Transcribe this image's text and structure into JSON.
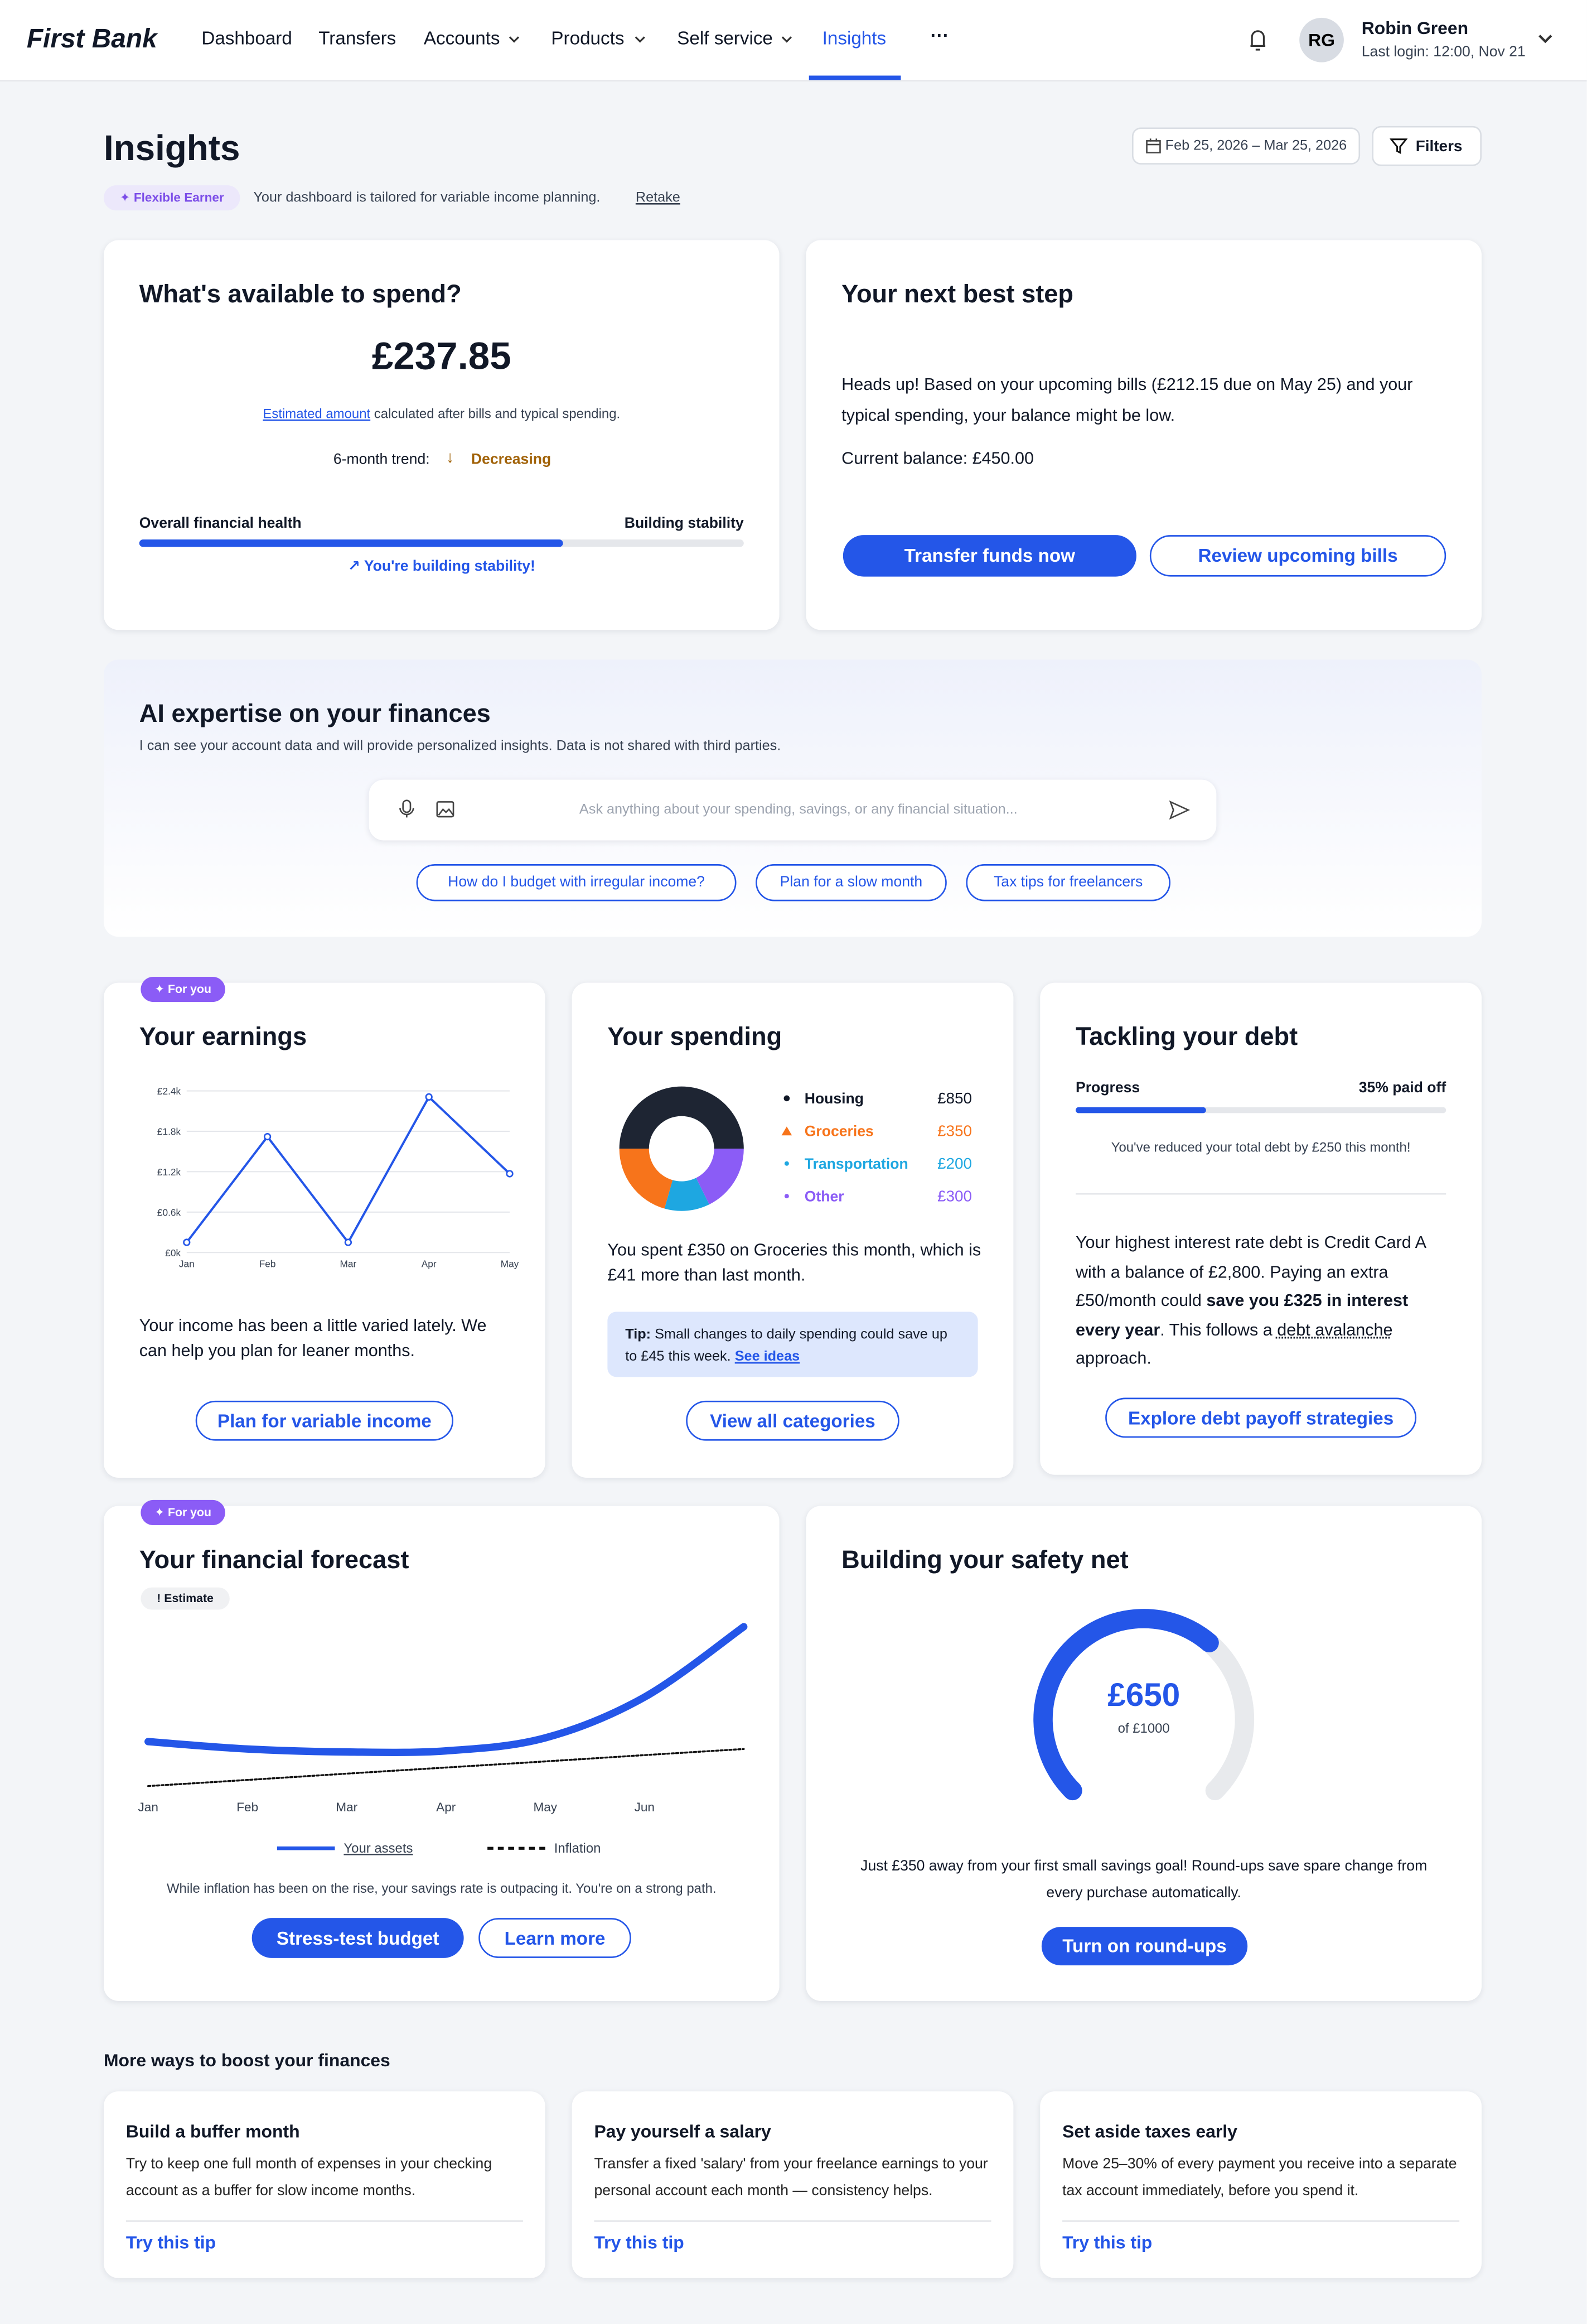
{
  "nav": {
    "logo": "First Bank",
    "items": [
      "Dashboard",
      "Transfers",
      "Accounts",
      "Products",
      "Self service",
      "Insights"
    ],
    "more": "···",
    "user": {
      "initials": "RG",
      "name": "Robin Green",
      "last_login": "Last login: 12:00, Nov 21"
    }
  },
  "header": {
    "title": "Insights",
    "date_range": "Feb 25, 2026 – Mar 25, 2026",
    "filters": "Filters",
    "badge": "✦ Flexible Earner",
    "tagline": "Your dashboard is tailored for variable income planning.",
    "retake": "Retake"
  },
  "available": {
    "title": "What's available to spend?",
    "amount": "£237.85",
    "estimated_link": "Estimated amount",
    "estimated_text": " calculated after bills and typical spending.",
    "trend_label": "6-month trend:",
    "trend_value": "Decreasing",
    "health_label": "Overall financial health",
    "health_status": "Building stability",
    "health_progress": 70,
    "health_max": 100,
    "health_note": "You're building stability!"
  },
  "next_step": {
    "title": "Your next best step",
    "message": "Heads up! Based on your upcoming bills (£212.15 due on May 25) and your typical spending, your balance might be low.",
    "balance": "Current balance: £450.00",
    "primary": "Transfer funds now",
    "secondary": "Review upcoming bills"
  },
  "ai": {
    "title": "AI expertise on your finances",
    "subtitle": "I can see your account data and will provide personalized insights. Data is not shared with third parties.",
    "placeholder": "Ask anything about your spending, savings, or any financial situation...",
    "suggestions": [
      "How do I budget with irregular income?",
      "Plan for a slow month",
      "Tax tips for freelancers"
    ]
  },
  "earnings": {
    "badge": "✦ For you",
    "title": "Your earnings",
    "chart_data": {
      "type": "line",
      "categories": [
        "Jan",
        "Feb",
        "Mar",
        "Apr",
        "May"
      ],
      "values": [
        150,
        1720,
        150,
        2310,
        1170
      ],
      "color": "#2456e8",
      "ylim": [
        0,
        2400
      ],
      "yticks": [
        {
          "value": 0,
          "label": "£0k"
        },
        {
          "value": 600,
          "label": "£0.6k"
        },
        {
          "value": 1200,
          "label": "£1.2k"
        },
        {
          "value": 1800,
          "label": "£1.8k"
        },
        {
          "value": 2400,
          "label": "£2.4k"
        }
      ],
      "grid": true
    },
    "text": "Your income has been a little varied lately. We can help you plan for leaner months.",
    "button": "Plan for variable income"
  },
  "spending": {
    "title": "Your spending",
    "chart_data": {
      "type": "donut",
      "categories": [
        "Housing",
        "Groceries",
        "Transportation",
        "Other"
      ],
      "values": [
        850,
        350,
        200,
        300
      ],
      "value_labels": [
        "£850",
        "£350",
        "£200",
        "£300"
      ],
      "colors": [
        "#1e2533",
        "#f7741b",
        "#1ea7e1",
        "#8b5cf6"
      ]
    },
    "summary": "You spent £350 on Groceries this month, which is £41 more than last month.",
    "tip_label": "Tip:",
    "tip_text": " Small changes to daily spending could save up to £45 this week. ",
    "tip_link": "See ideas",
    "button": "View all categories"
  },
  "debt": {
    "title": "Tackling your debt",
    "progress_label": "Progress",
    "progress_text": "35% paid off",
    "progress_value": 35,
    "progress_max": 100,
    "note": "You've reduced your total debt by £250 this month!",
    "text_parts": [
      "Your highest interest rate debt is Credit Card A with a balance of £2,800. Paying an extra £50/month could ",
      "save you £325 in interest every year",
      ". This follows a ",
      "debt avalanche",
      " approach."
    ],
    "button": "Explore debt payoff strategies"
  },
  "forecast": {
    "badge": "✦ For you",
    "title": "Your financial forecast",
    "estimate": "! Estimate",
    "chart_data": {
      "type": "line",
      "categories": [
        "Jan",
        "Feb",
        "Mar",
        "Apr",
        "May",
        "Jun",
        null
      ],
      "series": [
        {
          "name": "Your assets",
          "color": "#2456e8",
          "values": [
            32,
            28,
            26.4,
            27,
            34,
            56,
            94
          ]
        },
        {
          "name": "Inflation",
          "color": "#111111",
          "values": [
            8,
            11.3,
            14.7,
            18,
            21.3,
            24.7,
            28
          ]
        }
      ],
      "ylim": [
        0,
        100
      ]
    },
    "note": "While inflation has been on the rise, your savings rate is outpacing it. You're on a strong path.",
    "primary": "Stress-test budget",
    "secondary": "Learn more"
  },
  "safety": {
    "title": "Building your safety net",
    "chart_data": {
      "type": "gauge",
      "value": 650,
      "value_label": "£650",
      "max": 1000,
      "max_label": "of £1000",
      "color": "#2456e8"
    },
    "text": "Just £350 away from your first small savings goal! Round-ups save spare change from every purchase automatically.",
    "button": "Turn on round-ups"
  },
  "tips": {
    "title": "More ways to boost your finances",
    "items": [
      {
        "title": "Build a buffer month",
        "text": "Try to keep one full month of expenses in your checking account as a buffer for slow income months.",
        "link": "Try this tip"
      },
      {
        "title": "Pay yourself a salary",
        "text": "Transfer a fixed 'salary' from your freelance earnings to your personal account each month — consistency helps.",
        "link": "Try this tip"
      },
      {
        "title": "Set aside taxes early",
        "text": "Move 25–30% of every payment you receive into a separate tax account immediately, before you spend it.",
        "link": "Try this tip"
      }
    ]
  }
}
